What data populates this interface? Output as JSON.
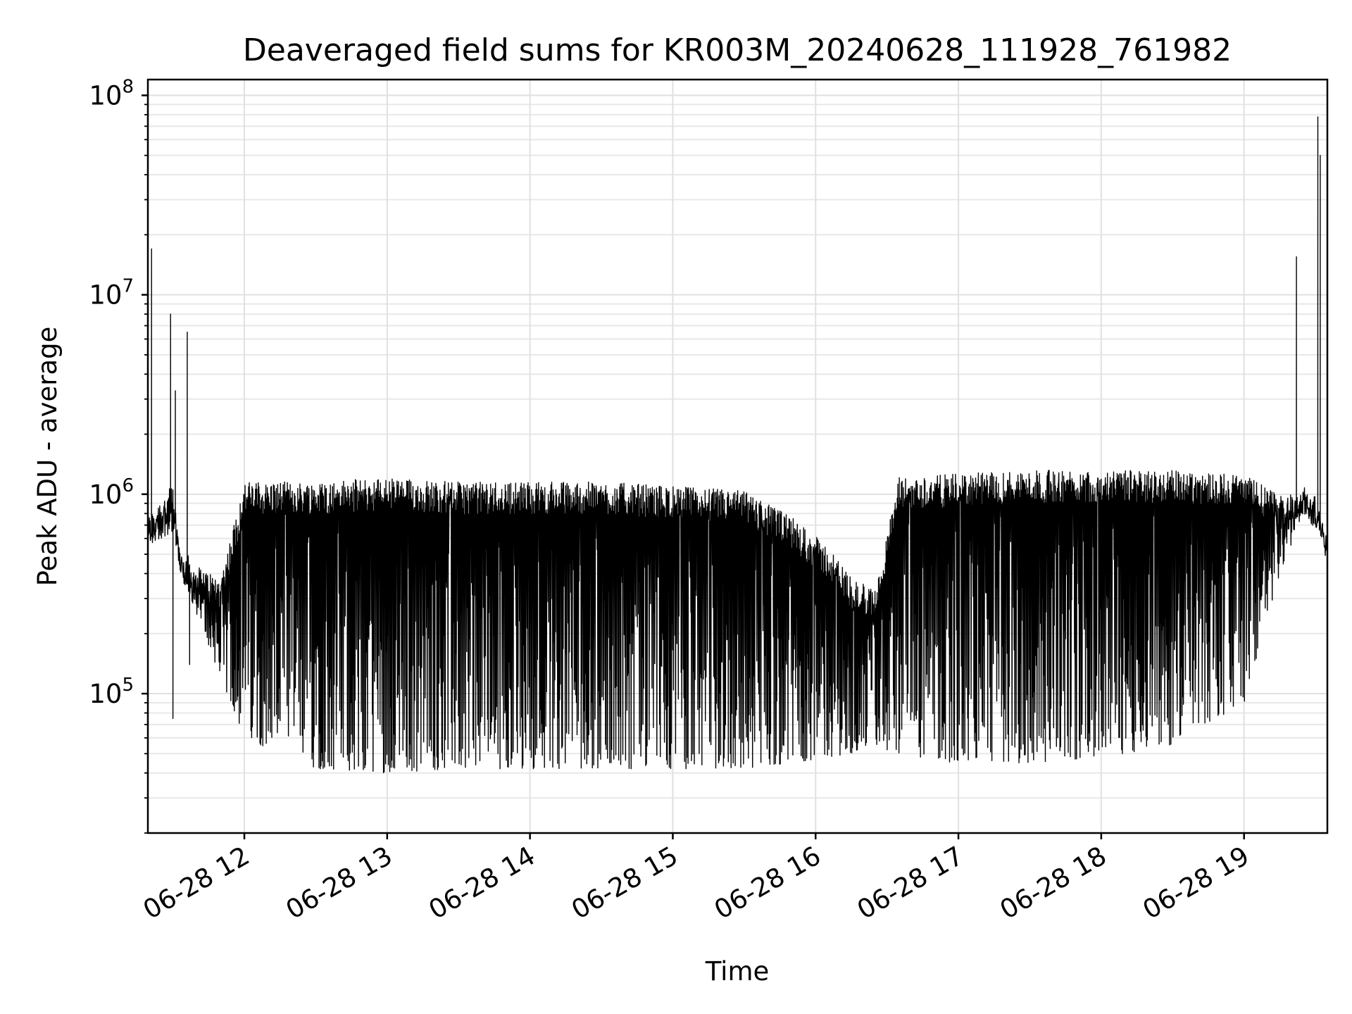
{
  "chart_data": {
    "type": "line",
    "title": "Deaveraged field sums for KR003M_20240628_111928_761982",
    "xlabel": "Time",
    "ylabel": "Peak ADU - average",
    "yscale": "log",
    "ylim": [
      20000,
      120000000
    ],
    "xlim": [
      "2024-06-28 11:19:28",
      "2024-06-28 19:35:00"
    ],
    "x_ticks": [
      {
        "value": "2024-06-28 12:00",
        "label": "06-28 12"
      },
      {
        "value": "2024-06-28 13:00",
        "label": "06-28 13"
      },
      {
        "value": "2024-06-28 14:00",
        "label": "06-28 14"
      },
      {
        "value": "2024-06-28 15:00",
        "label": "06-28 15"
      },
      {
        "value": "2024-06-28 16:00",
        "label": "06-28 16"
      },
      {
        "value": "2024-06-28 17:00",
        "label": "06-28 17"
      },
      {
        "value": "2024-06-28 18:00",
        "label": "06-28 18"
      },
      {
        "value": "2024-06-28 19:00",
        "label": "06-28 19"
      }
    ],
    "y_ticks": [
      {
        "value": 100000,
        "base": "10",
        "exp": "5"
      },
      {
        "value": 1000000,
        "base": "10",
        "exp": "6"
      },
      {
        "value": 10000000,
        "base": "10",
        "exp": "7"
      },
      {
        "value": 100000000,
        "base": "10",
        "exp": "8"
      }
    ],
    "grid": true,
    "line_color": "#000000",
    "series": [
      {
        "upper_envelope": {
          "x": [
            "2024-06-28 11:19:30",
            "2024-06-28 11:25",
            "2024-06-28 11:30",
            "2024-06-28 11:33",
            "2024-06-28 11:40",
            "2024-06-28 11:50",
            "2024-06-28 12:00",
            "2024-06-28 12:30",
            "2024-06-28 13:00",
            "2024-06-28 13:30",
            "2024-06-28 14:00",
            "2024-06-28 14:30",
            "2024-06-28 15:00",
            "2024-06-28 15:30",
            "2024-06-28 15:50",
            "2024-06-28 16:05",
            "2024-06-28 16:15",
            "2024-06-28 16:25",
            "2024-06-28 16:35",
            "2024-06-28 17:00",
            "2024-06-28 17:30",
            "2024-06-28 18:00",
            "2024-06-28 18:30",
            "2024-06-28 19:00",
            "2024-06-28 19:15",
            "2024-06-28 19:25",
            "2024-06-28 19:30",
            "2024-06-28 19:35"
          ],
          "y": [
            700000,
            900000,
            1000000,
            500000,
            400000,
            350000,
            1050000,
            1050000,
            1100000,
            1050000,
            1050000,
            1050000,
            1000000,
            950000,
            700000,
            500000,
            350000,
            300000,
            1100000,
            1150000,
            1200000,
            1200000,
            1200000,
            1150000,
            900000,
            1000000,
            900000,
            600000
          ]
        },
        "lower_envelope": {
          "x": [
            "2024-06-28 11:19:30",
            "2024-06-28 11:25",
            "2024-06-28 11:30",
            "2024-06-28 11:33",
            "2024-06-28 11:40",
            "2024-06-28 11:50",
            "2024-06-28 12:00",
            "2024-06-28 12:30",
            "2024-06-28 13:00",
            "2024-06-28 13:30",
            "2024-06-28 14:00",
            "2024-06-28 14:30",
            "2024-06-28 15:00",
            "2024-06-28 15:30",
            "2024-06-28 15:50",
            "2024-06-28 16:05",
            "2024-06-28 16:15",
            "2024-06-28 16:25",
            "2024-06-28 16:35",
            "2024-06-28 17:00",
            "2024-06-28 17:30",
            "2024-06-28 18:00",
            "2024-06-28 18:30",
            "2024-06-28 19:00",
            "2024-06-28 19:15",
            "2024-06-28 19:25",
            "2024-06-28 19:30",
            "2024-06-28 19:35"
          ],
          "y": [
            550000,
            600000,
            650000,
            400000,
            250000,
            120000,
            60000,
            42000,
            40000,
            42000,
            42000,
            42000,
            42000,
            42000,
            45000,
            48000,
            50000,
            55000,
            48000,
            45000,
            45000,
            48000,
            55000,
            90000,
            400000,
            800000,
            700000,
            500000
          ]
        },
        "peaks": [
          {
            "x": "2024-06-28 11:21",
            "y": 17000000
          },
          {
            "x": "2024-06-28 11:29",
            "y": 8000000
          },
          {
            "x": "2024-06-28 11:30",
            "y": 75000
          },
          {
            "x": "2024-06-28 11:31",
            "y": 3300000
          },
          {
            "x": "2024-06-28 11:36",
            "y": 6500000
          },
          {
            "x": "2024-06-28 11:37",
            "y": 140000
          },
          {
            "x": "2024-06-28 19:22",
            "y": 15500000
          },
          {
            "x": "2024-06-28 19:31",
            "y": 78000000
          },
          {
            "x": "2024-06-28 19:32",
            "y": 50000000
          }
        ],
        "min_value": 30000
      }
    ]
  }
}
